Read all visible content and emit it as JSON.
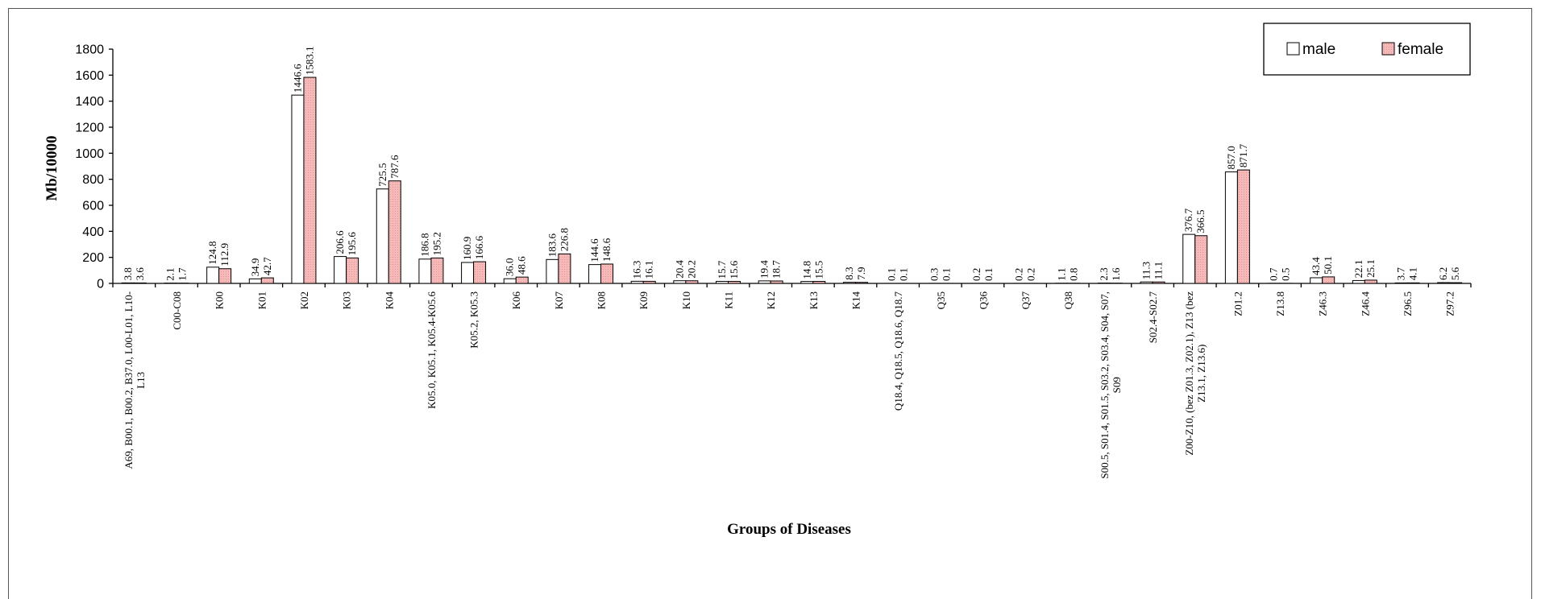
{
  "chart_data": {
    "type": "bar",
    "title": "",
    "xlabel": "Groups of Diseases",
    "ylabel": "Mb/10000",
    "ylim": [
      0,
      1800
    ],
    "yticks": [
      0,
      200,
      400,
      600,
      800,
      1000,
      1200,
      1400,
      1600,
      1800
    ],
    "grid": false,
    "legend_position": "top-right",
    "categories": [
      "A69, B00.1, B00.2, B37.0, L00-L01, L10-L13",
      "C00-C08",
      "K00",
      "K01",
      "K02",
      "K03",
      "K04",
      "K05.0, K05.1, K05.4-K05.6",
      "K05.2, K05.3",
      "K06",
      "K07",
      "K08",
      "K09",
      "K10",
      "K11",
      "K12",
      "K13",
      "K14",
      "Q18.4, Q18.5, Q18.6, Q18.7",
      "Q35",
      "Q36",
      "Q37",
      "Q38",
      "S00.5, S01.4, S01.5, S03.2, S03.4, S04, S07, S09",
      "S02.4-S02.7",
      "Z00-Z10, (bez Z01.3, Z02.1), Z13 (bez Z13.1, Z13.6)",
      "Z01.2",
      "Z13.8",
      "Z46.3",
      "Z46.4",
      "Z96.5",
      "Z97.2"
    ],
    "category_lines": [
      [
        "A69, B00.1, B00.2, B37.0, L00-L01, L10-",
        "L13"
      ],
      [
        "C00-C08"
      ],
      [
        "K00"
      ],
      [
        "K01"
      ],
      [
        "K02"
      ],
      [
        "K03"
      ],
      [
        "K04"
      ],
      [
        "K05.0, K05.1, K05.4-K05.6"
      ],
      [
        "K05.2, K05.3"
      ],
      [
        "K06"
      ],
      [
        "K07"
      ],
      [
        "K08"
      ],
      [
        "K09"
      ],
      [
        "K10"
      ],
      [
        "K11"
      ],
      [
        "K12"
      ],
      [
        "K13"
      ],
      [
        "K14"
      ],
      [
        "Q18.4, Q18.5, Q18.6, Q18.7"
      ],
      [
        "Q35"
      ],
      [
        "Q36"
      ],
      [
        "Q37"
      ],
      [
        "Q38"
      ],
      [
        "S00.5, S01.4, S01.5, S03.2, S03.4, S04, S07,",
        "S09"
      ],
      [
        "S02.4-S02.7"
      ],
      [
        "Z00-Z10, (bez Z01.3, Z02.1), Z13 (bez",
        "Z13.1, Z13.6)"
      ],
      [
        "Z01.2"
      ],
      [
        "Z13.8"
      ],
      [
        "Z46.3"
      ],
      [
        "Z46.4"
      ],
      [
        "Z96.5"
      ],
      [
        "Z97.2"
      ]
    ],
    "series": [
      {
        "name": "male",
        "color": "#ffffff",
        "values": [
          3.8,
          2.1,
          124.8,
          34.9,
          1446.6,
          206.6,
          725.5,
          186.8,
          160.9,
          36.0,
          183.6,
          144.6,
          16.3,
          20.4,
          15.7,
          19.4,
          14.8,
          8.3,
          0.1,
          0.3,
          0.2,
          0.2,
          1.1,
          2.3,
          11.3,
          376.7,
          857.0,
          0.7,
          43.4,
          22.1,
          3.7,
          6.2
        ],
        "labels": [
          "3.8",
          "2.1",
          "124.8",
          "34.9",
          "1446.6",
          "206.6",
          "725.5",
          "186.8",
          "160.9",
          "36.0",
          "183.6",
          "144.6",
          "16.3",
          "20.4",
          "15.7",
          "19.4",
          "14.8",
          "8.3",
          "0.1",
          "0.3",
          "0.2",
          "0.2",
          "1.1",
          "2.3",
          "11.3",
          "376.7",
          "857.0",
          "0.7",
          "43.4",
          "22.1",
          "3.7",
          "6.2"
        ]
      },
      {
        "name": "female",
        "color": "#f7b8b8",
        "values": [
          3.6,
          1.7,
          112.9,
          42.7,
          1583.1,
          195.6,
          787.6,
          195.2,
          166.6,
          48.6,
          226.8,
          148.6,
          16.1,
          20.2,
          15.6,
          18.7,
          15.5,
          7.9,
          0.1,
          0.1,
          0.1,
          0.2,
          0.8,
          1.6,
          11.1,
          366.5,
          871.7,
          0.5,
          50.1,
          25.1,
          4.1,
          5.6
        ],
        "labels": [
          "3.6",
          "1.7",
          "112.9",
          "42.7",
          "1583.1",
          "195.6",
          "787.6",
          "195.2",
          "166.6",
          "48.6",
          "226.8",
          "148.6",
          "16.1",
          "20.2",
          "15.6",
          "18.7",
          "15.5",
          "7.9",
          "0.1",
          "0.1",
          "0.1",
          "0.2",
          "0.8",
          "1.6",
          "11.1",
          "366.5",
          "871.7",
          "0.5",
          "50.1",
          "25.1",
          "4.1",
          "5.6"
        ]
      }
    ]
  }
}
